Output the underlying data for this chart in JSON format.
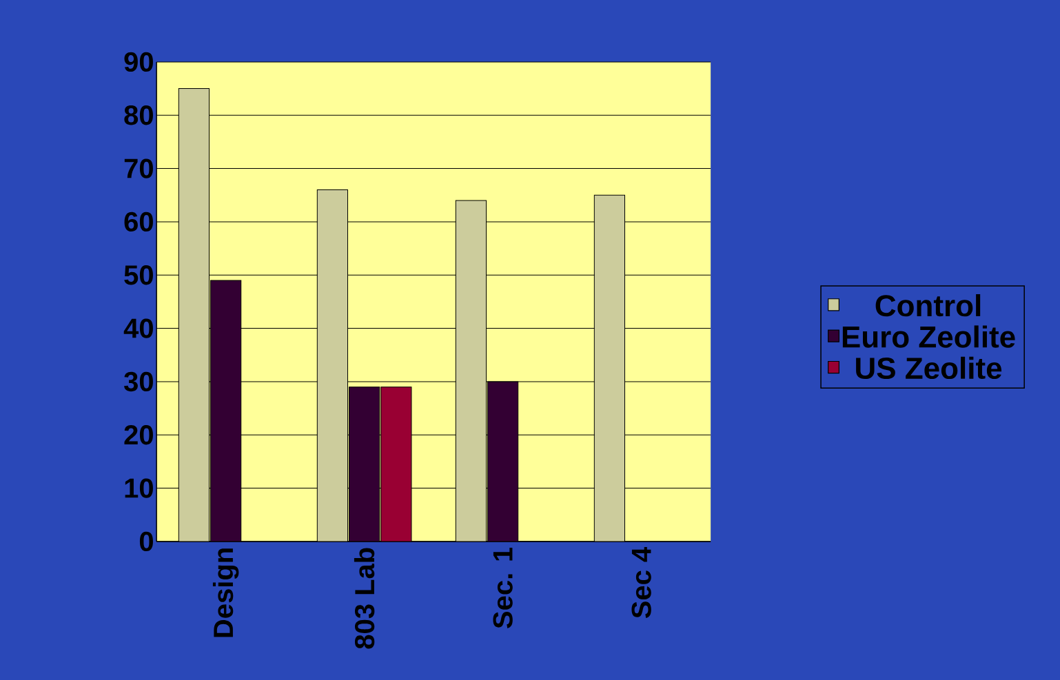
{
  "chart_data": {
    "type": "bar",
    "categories": [
      "Design",
      "803 Lab",
      "Sec. 1",
      "Sec 4"
    ],
    "series": [
      {
        "name": "Control",
        "color": "#cccc9c",
        "values": [
          85,
          66,
          64,
          65
        ]
      },
      {
        "name": "Euro Zeolite",
        "color": "#330033",
        "values": [
          49,
          29,
          30,
          null
        ]
      },
      {
        "name": "US Zeolite",
        "color": "#990033",
        "values": [
          null,
          29,
          0,
          null
        ]
      }
    ],
    "ylim": [
      0,
      90
    ],
    "yticks": [
      0,
      10,
      20,
      30,
      40,
      50,
      60,
      70,
      80,
      90
    ],
    "grid": "y",
    "legend": "right"
  }
}
